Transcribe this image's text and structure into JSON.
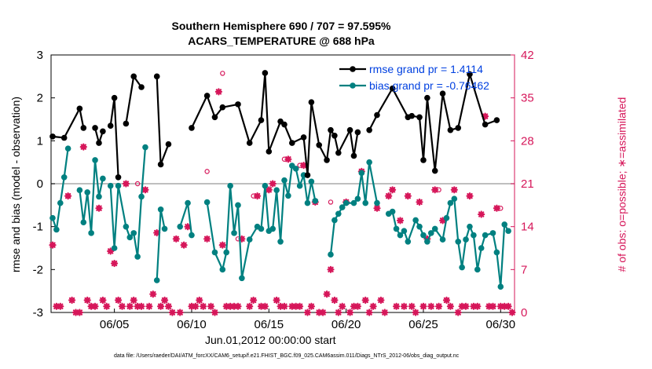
{
  "title_line1": "Southern Hemisphere 690 / 707 = 97.595%",
  "title_line2": "ACARS_TEMPERATURE @ 688 hPa",
  "footer": "data file: /Users/raeder/DAI/ATM_forcXX/CAM6_setup/f.e21.FHIST_BGC.f09_025.CAM6assim.011/Diags_NTrS_2012-06/obs_diag_output.nc",
  "colors": {
    "rmse": "#000000",
    "bias": "#008080",
    "obs": "#d6175a",
    "legend_text": "#0040e0",
    "zero_line": "#aaaaaa"
  },
  "chart_data": {
    "type": "line",
    "title": "Southern Hemisphere 690 / 707 = 97.595% — ACARS_TEMPERATURE @ 688 hPa",
    "xlabel": "Jun.01,2012 00:00:00 start",
    "ylabel": "rmse and bias (model - observation)",
    "ylabel_right": "# of obs: o=possible; ∗=assimilated",
    "xlim": [
      0.9,
      30.9
    ],
    "ylim": [
      -3,
      3
    ],
    "ylim_right": [
      0,
      42
    ],
    "x_ticks": [
      5,
      10,
      15,
      20,
      25,
      30
    ],
    "x_tick_labels": [
      "06/05",
      "06/10",
      "06/15",
      "06/20",
      "06/25",
      "06/30"
    ],
    "y_ticks": [
      -3,
      -2,
      -1,
      0,
      1,
      2,
      3
    ],
    "y_tick_labels": [
      "-3",
      "-2",
      "-1",
      "0",
      "1",
      "2",
      "3"
    ],
    "y_right_ticks": [
      0,
      7,
      14,
      21,
      28,
      35,
      42
    ],
    "y_right_tick_labels": [
      "0",
      "7",
      "14",
      "21",
      "28",
      "35",
      "42"
    ],
    "legend": {
      "rmse": "rmse grand pr = 1.4114",
      "bias": "bias grand pr = -0.76462"
    },
    "series": [
      {
        "name": "rmse",
        "values": [
          [
            1.0,
            1.1
          ],
          [
            1.75,
            1.07
          ],
          [
            2.75,
            1.75
          ],
          [
            3.0,
            1.3
          ],
          null,
          [
            3.75,
            1.3
          ],
          [
            4.0,
            0.95
          ],
          [
            4.25,
            1.22
          ],
          null,
          [
            4.75,
            1.35
          ],
          [
            5.0,
            2.0
          ],
          [
            5.25,
            0.15
          ],
          null,
          [
            5.75,
            1.4
          ],
          [
            6.25,
            2.5
          ],
          [
            6.75,
            2.25
          ],
          null,
          [
            7.75,
            2.5
          ],
          [
            8.0,
            0.45
          ],
          [
            8.5,
            0.92
          ],
          null,
          [
            10.0,
            1.3
          ],
          [
            11.0,
            2.05
          ],
          [
            11.5,
            1.55
          ],
          [
            12.0,
            1.78
          ],
          [
            13.0,
            1.85
          ],
          [
            13.75,
            0.95
          ],
          [
            14.5,
            1.48
          ],
          [
            14.75,
            2.58
          ],
          [
            15.0,
            0.75
          ],
          [
            15.75,
            1.45
          ],
          [
            16.0,
            1.38
          ],
          [
            16.5,
            0.95
          ],
          [
            17.25,
            1.08
          ],
          [
            17.5,
            0.2
          ],
          [
            17.75,
            1.9
          ],
          [
            18.25,
            0.9
          ],
          [
            18.75,
            0.55
          ],
          [
            19.0,
            1.25
          ],
          [
            19.25,
            1.12
          ],
          [
            19.5,
            0.72
          ],
          [
            20.25,
            1.25
          ],
          [
            20.5,
            0.65
          ],
          [
            20.75,
            1.2
          ],
          null,
          [
            21.5,
            1.25
          ],
          [
            22.0,
            1.6
          ],
          [
            23.0,
            2.22
          ],
          [
            24.0,
            1.55
          ],
          [
            24.25,
            1.58
          ],
          [
            24.75,
            1.55
          ],
          [
            25.0,
            0.55
          ],
          [
            25.25,
            2.0
          ],
          [
            25.75,
            0.3
          ],
          [
            26.25,
            2.1
          ],
          [
            26.75,
            1.25
          ],
          [
            27.25,
            1.3
          ],
          [
            28.0,
            2.55
          ],
          [
            29.0,
            1.38
          ],
          [
            29.75,
            1.48
          ]
        ]
      },
      {
        "name": "bias",
        "values": [
          [
            1.0,
            -0.8
          ],
          [
            1.25,
            -1.07
          ],
          [
            1.5,
            -0.45
          ],
          [
            1.75,
            0.15
          ],
          [
            2.0,
            0.82
          ],
          null,
          [
            2.75,
            -0.15
          ],
          [
            3.0,
            -0.9
          ],
          [
            3.25,
            -0.2
          ],
          [
            3.5,
            -1.15
          ],
          [
            3.75,
            0.55
          ],
          [
            4.0,
            -0.3
          ],
          [
            4.25,
            0.12
          ],
          null,
          [
            4.75,
            -0.05
          ],
          [
            5.0,
            -1.5
          ],
          [
            5.25,
            -0.05
          ],
          [
            5.75,
            -1.0
          ],
          [
            6.0,
            -1.25
          ],
          [
            6.25,
            -1.15
          ],
          [
            6.5,
            -1.7
          ],
          [
            6.75,
            -0.3
          ],
          [
            7.0,
            0.85
          ],
          null,
          [
            7.75,
            -2.25
          ],
          [
            8.0,
            -0.6
          ],
          [
            8.25,
            -1.05
          ],
          null,
          [
            9.25,
            -1.0
          ],
          [
            9.75,
            -0.45
          ],
          [
            10.0,
            -1.2
          ],
          null,
          [
            11.0,
            -0.43
          ],
          [
            11.5,
            -1.6
          ],
          [
            12.0,
            -2.0
          ],
          [
            12.25,
            -1.6
          ],
          [
            12.5,
            -0.05
          ],
          [
            12.75,
            -1.15
          ],
          [
            13.0,
            -0.5
          ],
          [
            13.25,
            -2.2
          ],
          [
            13.75,
            -1.3
          ],
          [
            14.25,
            -1.0
          ],
          [
            14.5,
            -1.05
          ],
          [
            14.75,
            -0.05
          ],
          [
            15.0,
            -1.1
          ],
          [
            15.25,
            -1.05
          ],
          [
            15.5,
            -0.15
          ],
          [
            15.75,
            -1.35
          ],
          [
            16.0,
            0.08
          ],
          [
            16.25,
            -0.28
          ],
          [
            16.5,
            0.42
          ],
          [
            16.75,
            0.35
          ],
          [
            17.0,
            -0.05
          ],
          [
            17.25,
            0.2
          ],
          [
            17.5,
            -0.45
          ],
          [
            17.75,
            0.05
          ],
          [
            18.0,
            -0.4
          ],
          null,
          [
            19.0,
            -1.65
          ],
          [
            19.25,
            -0.85
          ],
          [
            19.5,
            -0.7
          ],
          [
            19.75,
            -0.55
          ],
          [
            20.0,
            -0.45
          ],
          [
            20.5,
            -0.45
          ],
          [
            20.75,
            -0.35
          ],
          [
            21.0,
            0.25
          ],
          [
            21.25,
            -0.45
          ],
          [
            21.5,
            0.5
          ],
          [
            22.0,
            -0.45
          ],
          null,
          [
            22.75,
            -0.7
          ],
          [
            23.0,
            -0.65
          ],
          [
            23.25,
            -1.05
          ],
          [
            23.5,
            -1.2
          ],
          [
            23.75,
            -1.1
          ],
          [
            24.0,
            -1.35
          ],
          [
            24.5,
            -0.85
          ],
          [
            24.75,
            -1.0
          ],
          [
            25.0,
            -1.2
          ],
          [
            25.25,
            -1.35
          ],
          [
            25.5,
            -1.15
          ],
          [
            25.75,
            -1.05
          ],
          [
            26.25,
            -1.3
          ],
          [
            26.5,
            -0.8
          ],
          [
            26.75,
            -0.45
          ],
          [
            27.0,
            -0.35
          ],
          [
            27.25,
            -1.35
          ],
          [
            27.5,
            -1.95
          ],
          [
            27.75,
            -1.3
          ],
          [
            28.0,
            -1.0
          ],
          [
            28.25,
            -1.2
          ],
          [
            28.5,
            -2.0
          ],
          [
            28.75,
            -1.5
          ],
          [
            29.0,
            -1.2
          ],
          [
            29.5,
            -1.15
          ],
          [
            29.75,
            -1.6
          ],
          [
            30.0,
            -2.4
          ],
          [
            30.25,
            -0.95
          ],
          [
            30.5,
            -1.1
          ]
        ]
      },
      {
        "name": "obs_assimilated",
        "values": [
          [
            1,
            11
          ],
          [
            1.25,
            1
          ],
          [
            1.5,
            1
          ],
          [
            2,
            19
          ],
          [
            2.25,
            2
          ],
          [
            2.5,
            0
          ],
          [
            2.75,
            0
          ],
          [
            3,
            27
          ],
          [
            3.25,
            2
          ],
          [
            3.5,
            1
          ],
          [
            3.75,
            1
          ],
          [
            4,
            17
          ],
          [
            4.25,
            2
          ],
          [
            4.5,
            1
          ],
          [
            4.75,
            10
          ],
          [
            5,
            8
          ],
          [
            5.25,
            2
          ],
          [
            5.5,
            1
          ],
          [
            5.75,
            21
          ],
          [
            6,
            1
          ],
          [
            6.25,
            2
          ],
          [
            6.5,
            1
          ],
          [
            6.75,
            1
          ],
          [
            7,
            20
          ],
          [
            7.25,
            1
          ],
          [
            7.5,
            3
          ],
          [
            7.75,
            13
          ],
          [
            8,
            1
          ],
          [
            8.25,
            2
          ],
          [
            8.5,
            1
          ],
          [
            8.75,
            0
          ],
          [
            9,
            12
          ],
          [
            9.25,
            0
          ],
          [
            9.5,
            11
          ],
          [
            9.75,
            14
          ],
          [
            10,
            1
          ],
          [
            10.25,
            1
          ],
          [
            10.5,
            2
          ],
          [
            10.75,
            1
          ],
          [
            11,
            12
          ],
          [
            11.25,
            1
          ],
          [
            11.5,
            0
          ],
          [
            11.75,
            36
          ],
          [
            12,
            11
          ],
          [
            12.25,
            1
          ],
          [
            12.5,
            1
          ],
          [
            12.75,
            1
          ],
          [
            13,
            1
          ],
          [
            13.25,
            12
          ],
          [
            13.75,
            1
          ],
          [
            14,
            2
          ],
          [
            14.25,
            19
          ],
          [
            14.5,
            1
          ],
          [
            14.75,
            1
          ],
          [
            15,
            20
          ],
          [
            15.25,
            21
          ],
          [
            15.5,
            2
          ],
          [
            15.75,
            1
          ],
          [
            16,
            1
          ],
          [
            16.25,
            25
          ],
          [
            16.5,
            1
          ],
          [
            16.75,
            1
          ],
          [
            17,
            1
          ],
          [
            17.25,
            24
          ],
          [
            17.5,
            0
          ],
          [
            17.75,
            1
          ],
          [
            18,
            18
          ],
          [
            18.25,
            0
          ],
          [
            18.5,
            0
          ],
          [
            18.75,
            3
          ],
          [
            19,
            7
          ],
          [
            19.25,
            2
          ],
          [
            19.5,
            0
          ],
          [
            19.75,
            1
          ],
          [
            20,
            18
          ],
          [
            20.25,
            0
          ],
          [
            20.5,
            1
          ],
          [
            20.75,
            1
          ],
          [
            21,
            23
          ],
          [
            21.25,
            2
          ],
          [
            21.5,
            0
          ],
          [
            21.75,
            1
          ],
          [
            22,
            17
          ],
          [
            22.25,
            2
          ],
          [
            22.5,
            0
          ],
          [
            22.75,
            19
          ],
          [
            23,
            20
          ],
          [
            23.25,
            1
          ],
          [
            23.5,
            15
          ],
          [
            23.75,
            1
          ],
          [
            24,
            19
          ],
          [
            24.25,
            1
          ],
          [
            24.5,
            0
          ],
          [
            24.75,
            18
          ],
          [
            25,
            1
          ],
          [
            25.25,
            12
          ],
          [
            25.5,
            1
          ],
          [
            25.75,
            20
          ],
          [
            26,
            1
          ],
          [
            26.25,
            15
          ],
          [
            26.5,
            2
          ],
          [
            26.75,
            1
          ],
          [
            27,
            20
          ],
          [
            27.25,
            0
          ],
          [
            27.5,
            1
          ],
          [
            27.75,
            1
          ],
          [
            28,
            19
          ],
          [
            28.25,
            1
          ],
          [
            28.5,
            1
          ],
          [
            28.75,
            16
          ],
          [
            29,
            32
          ],
          [
            29.25,
            1
          ],
          [
            29.5,
            1
          ],
          [
            29.75,
            17
          ],
          [
            30,
            1
          ],
          [
            30.25,
            1
          ],
          [
            30.5,
            1
          ],
          [
            30.75,
            0
          ]
        ]
      },
      {
        "name": "obs_possible",
        "values": [
          [
            1,
            11
          ],
          [
            2,
            19
          ],
          [
            3,
            27
          ],
          [
            4,
            17
          ],
          [
            5,
            8
          ],
          [
            5.75,
            21
          ],
          [
            6.5,
            21
          ],
          [
            7,
            20
          ],
          [
            8,
            1
          ],
          [
            9,
            12
          ],
          [
            10,
            1
          ],
          [
            11,
            23
          ],
          [
            12,
            39
          ],
          [
            13,
            12
          ],
          [
            14,
            19
          ],
          [
            15,
            20
          ],
          [
            16,
            25
          ],
          [
            17,
            24
          ],
          [
            18,
            18
          ],
          [
            19,
            18
          ],
          [
            20,
            18
          ],
          [
            21,
            23
          ],
          [
            22,
            17
          ],
          [
            23,
            20
          ],
          [
            24,
            19
          ],
          [
            25,
            1
          ],
          [
            26,
            20
          ],
          [
            27,
            20
          ],
          [
            28,
            19
          ],
          [
            29,
            32
          ],
          [
            30,
            17
          ]
        ]
      }
    ]
  }
}
